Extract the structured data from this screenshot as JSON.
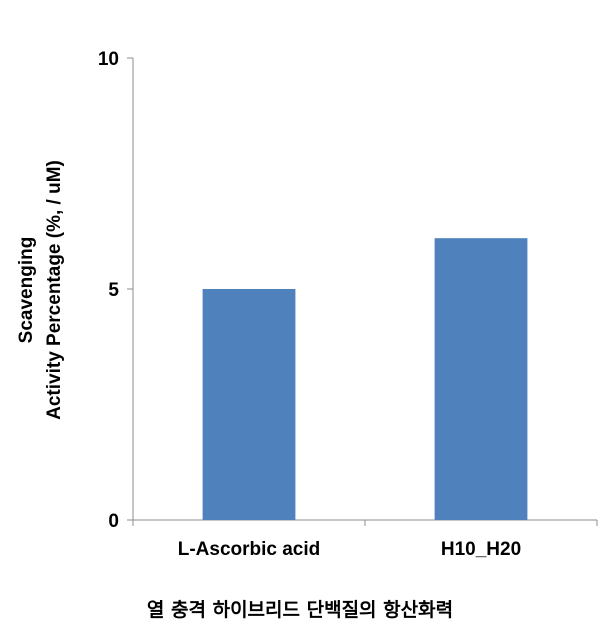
{
  "chart_data": {
    "type": "bar",
    "categories": [
      "L-Ascorbic acid",
      "H10_H20"
    ],
    "values": [
      5.0,
      6.1
    ],
    "xlabel": "열 충격 하이브리드 단백질의 항산화력",
    "ylabel": [
      "Scavenging",
      "Activity Percentage (%,  / uM)"
    ],
    "ylim": [
      0,
      10
    ],
    "yticks": [
      0,
      5,
      10
    ],
    "grid": false,
    "legend": "none",
    "bar_color": "#4F81BD"
  }
}
